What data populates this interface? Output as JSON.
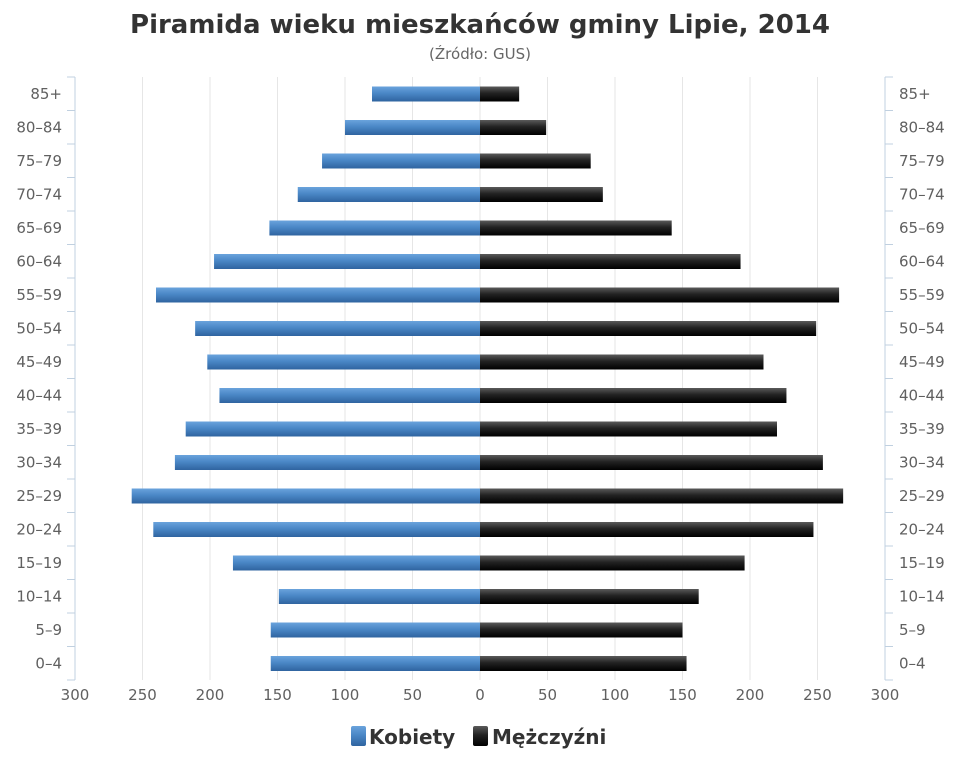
{
  "chart_data": {
    "type": "bar",
    "title": "Piramida wieku mieszkańców gminy Lipie, 2014",
    "subtitle": "(Źródło: GUS)",
    "categories": [
      "85+",
      "80–84",
      "75–79",
      "70–74",
      "65–69",
      "60–64",
      "55–59",
      "50–54",
      "45–49",
      "40–44",
      "35–39",
      "30–34",
      "25–29",
      "20–24",
      "15–19",
      "10–14",
      "5–9",
      "0–4"
    ],
    "series": [
      {
        "name": "Kobiety",
        "color": "#4a87c6",
        "values": [
          80,
          100,
          117,
          135,
          156,
          197,
          240,
          211,
          202,
          193,
          218,
          226,
          258,
          242,
          183,
          149,
          155,
          155
        ]
      },
      {
        "name": "Mężczyźni",
        "color": "#222222",
        "values": [
          29,
          49,
          82,
          91,
          142,
          193,
          266,
          249,
          210,
          227,
          220,
          254,
          269,
          247,
          196,
          162,
          150,
          153
        ]
      }
    ],
    "x_ticks": [
      "300",
      "250",
      "200",
      "150",
      "100",
      "50",
      "0",
      "50",
      "100",
      "150",
      "200",
      "250",
      "300"
    ],
    "xlim": [
      -300,
      300
    ],
    "grid": true,
    "legend_position": "bottom"
  }
}
